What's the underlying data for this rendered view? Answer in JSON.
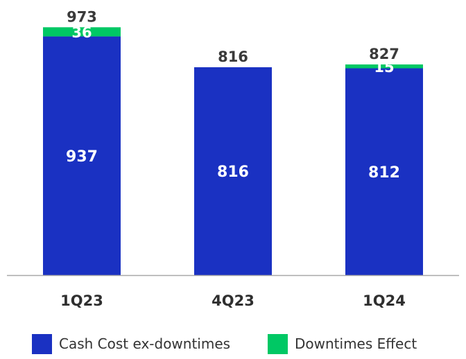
{
  "chart_data": {
    "type": "bar",
    "stacked": true,
    "categories": [
      "1Q23",
      "4Q23",
      "1Q24"
    ],
    "series": [
      {
        "name": "Cash Cost ex-downtimes",
        "values": [
          937,
          816,
          812
        ],
        "color": "#1a31c2"
      },
      {
        "name": "Downtimes Effect",
        "values": [
          36,
          0,
          15
        ],
        "color": "#00c864"
      }
    ],
    "totals": [
      973,
      816,
      827
    ],
    "ylim": [
      0,
      1000
    ],
    "grid": false,
    "legend_position": "bottom"
  }
}
